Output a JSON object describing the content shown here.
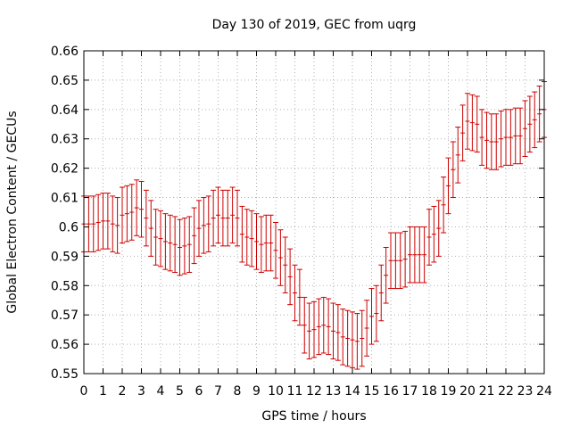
{
  "chart_data": {
    "type": "line",
    "style": "errorbars",
    "title": "Day 130 of 2019, GEC from uqrg",
    "xlabel": "GPS time / hours",
    "ylabel": "Global Electron Content / GECUs",
    "xlim": [
      0,
      24
    ],
    "ylim": [
      0.55,
      0.66
    ],
    "grid": true,
    "legend": "none",
    "color": "#cc0000",
    "x_ticks": [
      "0",
      "1",
      "2",
      "3",
      "4",
      "5",
      "6",
      "7",
      "8",
      "9",
      "10",
      "11",
      "12",
      "13",
      "14",
      "15",
      "16",
      "17",
      "18",
      "19",
      "20",
      "21",
      "22",
      "23",
      "24"
    ],
    "y_ticks": [
      "0.55",
      "0.56",
      "0.57",
      "0.58",
      "0.59",
      "0.6",
      "0.61",
      "0.62",
      "0.63",
      "0.64",
      "0.65",
      "0.66"
    ],
    "series": [
      {
        "name": "GEC",
        "x": [
          0,
          0.25,
          0.5,
          0.75,
          1,
          1.25,
          1.5,
          1.75,
          2,
          2.25,
          2.5,
          2.75,
          3,
          3.25,
          3.5,
          3.75,
          4,
          4.25,
          4.5,
          4.75,
          5,
          5.25,
          5.5,
          5.75,
          6,
          6.25,
          6.5,
          6.75,
          7,
          7.25,
          7.5,
          7.75,
          8,
          8.25,
          8.5,
          8.75,
          9,
          9.25,
          9.5,
          9.75,
          10,
          10.25,
          10.5,
          10.75,
          11,
          11.25,
          11.5,
          11.75,
          12,
          12.25,
          12.5,
          12.75,
          13,
          13.25,
          13.5,
          13.75,
          14,
          14.25,
          14.5,
          14.75,
          15,
          15.25,
          15.5,
          15.75,
          16,
          16.25,
          16.5,
          16.75,
          17,
          17.25,
          17.5,
          17.75,
          18,
          18.25,
          18.5,
          18.75,
          19,
          19.25,
          19.5,
          19.75,
          20,
          20.25,
          20.5,
          20.75,
          21,
          21.25,
          21.5,
          21.75,
          22,
          22.25,
          22.5,
          22.75,
          23,
          23.25,
          23.5,
          23.75,
          24
        ],
        "y": [
          0.601,
          0.601,
          0.601,
          0.6015,
          0.602,
          0.602,
          0.601,
          0.6005,
          0.604,
          0.6045,
          0.605,
          0.6065,
          0.606,
          0.603,
          0.5995,
          0.5965,
          0.596,
          0.595,
          0.5945,
          0.594,
          0.593,
          0.5935,
          0.594,
          0.597,
          0.5995,
          0.6005,
          0.601,
          0.603,
          0.604,
          0.603,
          0.603,
          0.604,
          0.603,
          0.5975,
          0.5965,
          0.596,
          0.595,
          0.594,
          0.5945,
          0.5945,
          0.592,
          0.5895,
          0.587,
          0.583,
          0.5775,
          0.576,
          0.5665,
          0.5645,
          0.565,
          0.566,
          0.5665,
          0.566,
          0.5645,
          0.564,
          0.5625,
          0.562,
          0.5615,
          0.561,
          0.562,
          0.5655,
          0.5695,
          0.5705,
          0.5775,
          0.5835,
          0.5885,
          0.5885,
          0.5885,
          0.589,
          0.5905,
          0.5905,
          0.5905,
          0.5905,
          0.5965,
          0.5975,
          0.5995,
          0.6075,
          0.614,
          0.6195,
          0.6245,
          0.632,
          0.636,
          0.6355,
          0.635,
          0.6305,
          0.6295,
          0.629,
          0.629,
          0.63,
          0.6305,
          0.6305,
          0.631,
          0.631,
          0.6335,
          0.635,
          0.6365,
          0.6385,
          0.64
        ],
        "error": 0.0095
      }
    ]
  }
}
